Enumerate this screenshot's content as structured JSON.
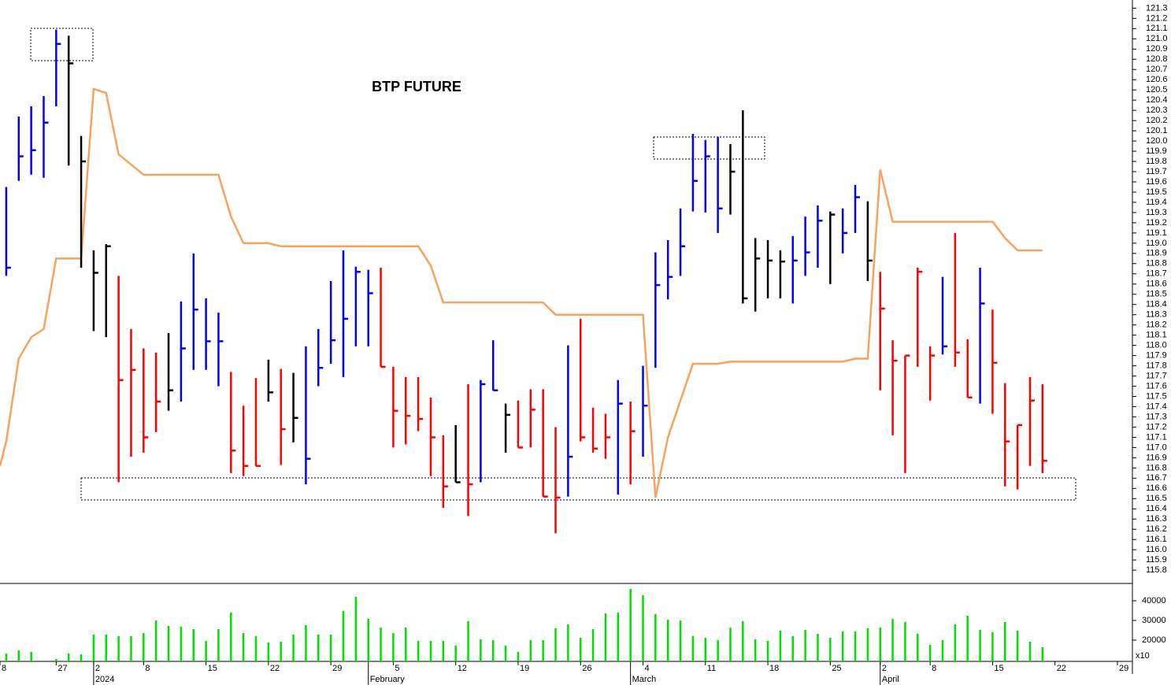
{
  "chart_data": {
    "type": "ohlc",
    "title": "BTP FUTURE",
    "xlim": [
      -0.5,
      90.2
    ],
    "xticks": [
      {
        "value": -0.5,
        "label": "8"
      },
      {
        "value": 4,
        "label": "27"
      },
      {
        "value": 7,
        "label": "2"
      },
      {
        "value": 11,
        "label": "8"
      },
      {
        "value": 16,
        "label": "15"
      },
      {
        "value": 21,
        "label": "22"
      },
      {
        "value": 26,
        "label": "29"
      },
      {
        "value": 31,
        "label": "5"
      },
      {
        "value": 36,
        "label": "12"
      },
      {
        "value": 41,
        "label": "19"
      },
      {
        "value": 46,
        "label": "26"
      },
      {
        "value": 51,
        "label": "4"
      },
      {
        "value": 56,
        "label": "11"
      },
      {
        "value": 61,
        "label": "18"
      },
      {
        "value": 66,
        "label": "25"
      },
      {
        "value": 70,
        "label": "2"
      },
      {
        "value": 74,
        "label": "8"
      },
      {
        "value": 79,
        "label": "15"
      },
      {
        "value": 84,
        "label": "22"
      },
      {
        "value": 89,
        "label": "29"
      }
    ],
    "months": [
      {
        "value": 7,
        "label": "2024"
      },
      {
        "value": 29,
        "label": "February"
      },
      {
        "value": 50,
        "label": "March"
      },
      {
        "value": 70,
        "label": "April"
      }
    ],
    "ylim": [
      115.67,
      121.38
    ],
    "yticks": [
      115.8,
      115.9,
      {
        "value": 116,
        "label": "116.0"
      },
      116.1,
      116.2,
      116.3,
      116.4,
      116.5,
      116.6,
      116.7,
      116.8,
      116.9,
      {
        "value": 117,
        "label": "117.0"
      },
      117.1,
      117.2,
      117.3,
      117.4,
      117.5,
      117.6,
      117.7,
      117.8,
      117.9,
      {
        "value": 118,
        "label": "118.0"
      },
      118.1,
      118.2,
      118.3,
      118.4,
      118.5,
      118.6,
      118.7,
      118.8,
      118.9,
      {
        "value": 119,
        "label": "119.0"
      },
      119.1,
      119.2,
      119.3,
      119.4,
      119.5,
      119.6,
      119.7,
      119.8,
      119.9,
      {
        "value": 120,
        "label": "120.0"
      },
      120.1,
      120.2,
      120.3,
      120.4,
      120.5,
      120.6,
      120.7,
      120.8,
      120.9,
      {
        "value": 121,
        "label": "121.0"
      },
      121.1,
      121.2,
      121.3
    ],
    "x": [
      0,
      1,
      2,
      3,
      4,
      5,
      6,
      7,
      8,
      9,
      10,
      11,
      12,
      13,
      14,
      15,
      16,
      17,
      18,
      19,
      20,
      21,
      22,
      23,
      24,
      25,
      26,
      27,
      28,
      29,
      30,
      31,
      32,
      33,
      34,
      35,
      36,
      37,
      38,
      39,
      40,
      41,
      42,
      43,
      44,
      45,
      46,
      47,
      48,
      49,
      50,
      51,
      52,
      53,
      54,
      55,
      56,
      57,
      58,
      59,
      60,
      61,
      62,
      63,
      64,
      65,
      66,
      67,
      68,
      69,
      70,
      71,
      72,
      73,
      74,
      75,
      76,
      77,
      78,
      79,
      80,
      81,
      82,
      83
    ],
    "high": [
      119.55,
      120.24,
      120.34,
      120.44,
      121.09,
      121.03,
      120.05,
      118.93,
      118.99,
      118.68,
      118.16,
      117.97,
      117.93,
      118.12,
      118.43,
      118.9,
      118.46,
      118.32,
      117.74,
      117.41,
      117.68,
      117.86,
      117.77,
      117.73,
      117.99,
      118.16,
      118.63,
      118.93,
      118.77,
      118.74,
      118.76,
      117.79,
      117.69,
      117.69,
      117.49,
      117.12,
      117.22,
      117.62,
      117.66,
      118.05,
      117.43,
      117.46,
      117.57,
      117.57,
      117.2,
      118.0,
      118.26,
      117.39,
      117.33,
      117.66,
      117.45,
      117.8,
      118.91,
      119.03,
      119.34,
      120.07,
      120.01,
      120.04,
      119.97,
      120.3,
      119.05,
      119.03,
      118.93,
      119.07,
      119.26,
      119.37,
      119.31,
      119.34,
      119.57,
      119.41,
      118.72,
      118.05,
      117.9,
      118.76,
      117.99,
      118.67,
      119.1,
      118.06,
      118.76,
      118.35,
      117.63,
      117.22,
      117.69,
      117.62
    ],
    "low": [
      118.68,
      119.61,
      119.67,
      119.64,
      120.34,
      119.76,
      118.76,
      118.14,
      118.08,
      116.66,
      116.91,
      116.95,
      117.15,
      117.36,
      117.45,
      117.76,
      117.76,
      117.6,
      116.75,
      116.72,
      116.82,
      117.45,
      116.83,
      117.05,
      116.64,
      117.6,
      117.82,
      117.69,
      117.99,
      117.99,
      117.79,
      117.0,
      117.03,
      117.16,
      116.72,
      116.41,
      116.66,
      116.33,
      116.66,
      117.56,
      116.95,
      117.0,
      117.0,
      116.52,
      116.16,
      116.52,
      117.06,
      116.95,
      116.89,
      116.54,
      116.64,
      116.91,
      117.78,
      118.45,
      118.68,
      119.31,
      119.3,
      119.1,
      119.28,
      118.41,
      118.33,
      118.46,
      118.46,
      118.41,
      118.68,
      118.76,
      118.6,
      118.9,
      119.1,
      118.63,
      117.56,
      117.12,
      116.75,
      117.79,
      117.46,
      117.91,
      117.79,
      117.49,
      117.43,
      117.33,
      116.62,
      116.59,
      116.82,
      116.75
    ],
    "close": [
      118.76,
      119.85,
      119.91,
      120.18,
      120.95,
      120.76,
      119.8,
      118.71,
      118.97,
      117.66,
      117.76,
      117.1,
      117.45,
      117.56,
      117.97,
      118.35,
      118.04,
      118.04,
      116.97,
      116.82,
      116.82,
      117.54,
      117.18,
      117.29,
      116.89,
      117.78,
      118.05,
      118.26,
      118.72,
      118.51,
      117.79,
      117.36,
      117.31,
      117.28,
      117.1,
      116.62,
      116.66,
      116.64,
      117.62,
      117.56,
      117.32,
      117.0,
      117.37,
      116.52,
      116.51,
      116.91,
      117.1,
      116.99,
      117.1,
      117.43,
      117.16,
      117.41,
      118.59,
      118.67,
      118.97,
      119.61,
      119.85,
      119.34,
      119.7,
      118.46,
      118.85,
      118.83,
      118.82,
      118.83,
      118.91,
      119.22,
      119.28,
      119.1,
      119.45,
      118.83,
      118.36,
      117.85,
      117.9,
      118.72,
      117.9,
      117.99,
      117.93,
      117.49,
      118.41,
      117.83,
      117.06,
      117.22,
      117.46,
      116.87
    ],
    "colors": [
      "#0000ff",
      "#0000ff",
      "#0000ff",
      "#0000ff",
      "#0000ff",
      "#000000",
      "#000000",
      "#000000",
      "#000000",
      "#ff0000",
      "#ff0000",
      "#ff0000",
      "#ff0000",
      "#000000",
      "#0000ff",
      "#0000ff",
      "#0000ff",
      "#0000ff",
      "#ff0000",
      "#ff0000",
      "#ff0000",
      "#000000",
      "#ff0000",
      "#000000",
      "#0000ff",
      "#0000ff",
      "#0000ff",
      "#0000ff",
      "#0000ff",
      "#0000ff",
      "#ff0000",
      "#ff0000",
      "#ff0000",
      "#ff0000",
      "#ff0000",
      "#ff0000",
      "#000000",
      "#ff0000",
      "#0000ff",
      "#0000ff",
      "#000000",
      "#ff0000",
      "#ff0000",
      "#ff0000",
      "#ff0000",
      "#0000ff",
      "#ff0000",
      "#ff0000",
      "#ff0000",
      "#0000ff",
      "#ff0000",
      "#0000ff",
      "#0000ff",
      "#0000ff",
      "#0000ff",
      "#0000ff",
      "#0000ff",
      "#0000ff",
      "#000000",
      "#000000",
      "#000000",
      "#000000",
      "#000000",
      "#0000ff",
      "#0000ff",
      "#0000ff",
      "#000000",
      "#0000ff",
      "#0000ff",
      "#000000",
      "#ff0000",
      "#ff0000",
      "#ff0000",
      "#ff0000",
      "#ff0000",
      "#0000ff",
      "#ff0000",
      "#ff0000",
      "#0000ff",
      "#ff0000",
      "#ff0000",
      "#ff0000",
      "#ff0000",
      "#ff0000"
    ],
    "line": {
      "color": "#f7a35c",
      "x": [
        -0.5,
        0,
        1,
        2,
        3,
        4,
        6,
        7,
        8,
        9,
        11,
        17,
        18,
        19,
        21,
        22,
        33,
        34,
        35,
        43,
        44,
        51,
        52,
        53,
        55,
        57,
        58,
        67,
        68,
        69,
        70,
        71,
        79,
        80,
        81,
        83
      ],
      "values": [
        116.82,
        117.06,
        117.87,
        118.08,
        118.16,
        118.85,
        118.85,
        120.51,
        120.47,
        119.87,
        119.67,
        119.67,
        119.26,
        119.0,
        119.0,
        118.97,
        118.97,
        118.78,
        118.42,
        118.42,
        118.3,
        118.3,
        116.51,
        117.1,
        117.82,
        117.82,
        117.84,
        117.84,
        117.87,
        117.87,
        119.72,
        119.21,
        119.21,
        119.05,
        118.93,
        118.93
      ]
    },
    "volume": {
      "color": "#00e000",
      "unit_label": "x10",
      "ylim": [
        9200,
        48800
      ],
      "yticks": [
        20000,
        30000,
        40000
      ],
      "values": [
        13200,
        14800,
        14000,
        null,
        10400,
        13200,
        12800,
        22800,
        22800,
        22000,
        22000,
        23600,
        30000,
        27200,
        26800,
        25600,
        19600,
        25600,
        34000,
        23600,
        22000,
        18800,
        19200,
        22800,
        27600,
        22800,
        22800,
        34800,
        42000,
        30800,
        26400,
        23600,
        26400,
        19600,
        19600,
        19600,
        17200,
        29600,
        20400,
        20000,
        17200,
        14000,
        20000,
        20000,
        26000,
        28000,
        21200,
        25600,
        33600,
        34000,
        46000,
        42800,
        33200,
        30400,
        30000,
        22000,
        21200,
        20000,
        26400,
        29600,
        20400,
        19600,
        24800,
        22000,
        25200,
        23200,
        21200,
        24400,
        24400,
        26000,
        26400,
        30800,
        29200,
        23200,
        17600,
        20000,
        28000,
        32400,
        25200,
        24000,
        29200,
        24800,
        19200,
        16400
      ]
    }
  }
}
